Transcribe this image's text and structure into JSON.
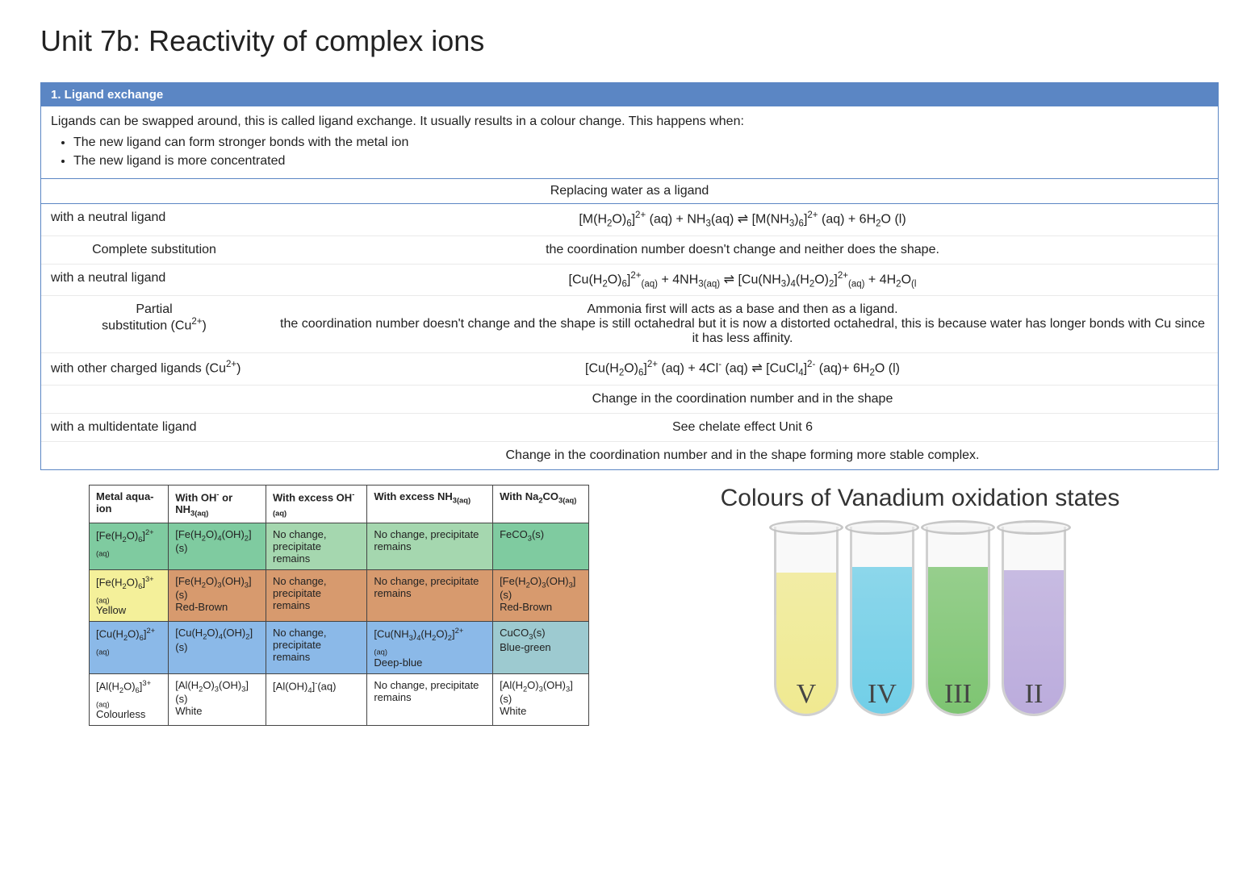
{
  "title": "Unit 7b: Reactivity of complex ions",
  "panel": {
    "header": "1. Ligand exchange",
    "intro_text": "Ligands can be swapped around, this is called ligand exchange.  It usually results in a colour change.   This happens when:",
    "bullets": [
      "The new ligand can form stronger bonds with the metal ion",
      "The new ligand is more concentrated"
    ],
    "subheader": "Replacing water as a ligand",
    "rows": [
      {
        "left": "with a neutral ligand",
        "right_html": "[M(H<sub>2</sub>O)<sub>6</sub>]<sup>2+</sup> (aq) + NH<sub>3</sub>(aq) &#8652; [M(NH<sub>3</sub>)<sub>6</sub>]<sup>2+</sup> (aq) + 6H<sub>2</sub>O (l)"
      },
      {
        "left_indent": "Complete substitution",
        "right": "the coordination number doesn't change and neither does the shape."
      },
      {
        "left": "with a neutral ligand",
        "right_html": "[Cu(H<sub>2</sub>O)<sub>6</sub>]<sup>2+</sup><sub>(aq)</sub> +  4NH<sub>3(aq)</sub> &#8652;  [Cu(NH<sub>3</sub>)<sub>4</sub>(H<sub>2</sub>O)<sub>2</sub>]<sup>2+</sup><sub>(aq)</sub>  + 4H<sub>2</sub>O<sub>(l</sub>"
      },
      {
        "left_indent_html": "Partial<br>substitution (Cu<sup>2+</sup>)",
        "right_html": "Ammonia first will acts as a base and then as a ligand.<br>the coordination number doesn't change and the shape is still octahedral but it is now a distorted octahedral, this is because water has longer bonds with Cu since it has less affinity."
      },
      {
        "left_html": "with other charged ligands (Cu<sup>2+</sup>)",
        "right_html": "[Cu(H<sub>2</sub>O)<sub>6</sub>]<sup>2+</sup> (aq) + 4Cl<sup>-</sup> (aq) &#8652; [CuCl<sub>4</sub>]<sup>2-</sup> (aq)+ 6H<sub>2</sub>O (l)"
      },
      {
        "left": "",
        "right": "Change in the coordination number and in the shape"
      },
      {
        "left": "with a multidentate ligand",
        "right": "See chelate effect Unit 6"
      },
      {
        "left": "",
        "right": "Change in the coordination number and in the shape forming more stable complex."
      }
    ]
  },
  "table": {
    "headers_html": [
      "Metal aqua-ion",
      "With OH<sup>-</sup> or NH<sub>3(aq)</sub>",
      "With excess OH<sup>-</sup><sub>(aq)</sub>",
      "With excess NH<sub>3(aq)</sub>",
      "With Na<sub>2</sub>CO<sub>3(aq)</sub>"
    ],
    "rows": [
      {
        "cells_html": [
          "[Fe(H<sub>2</sub>O)<sub>6</sub>]<sup>2+</sup> <sub>(aq)</sub>",
          "[Fe(H<sub>2</sub>O)<sub>4</sub>(OH)<sub>2</sub>] (s)",
          "No change, precipitate remains",
          "No change, precipitate remains",
          "FeCO<sub>3</sub>(s)"
        ],
        "classes": [
          "bg-green",
          "bg-green",
          "bg-green2",
          "bg-green2",
          "bg-green"
        ]
      },
      {
        "cells_html": [
          "[Fe(H<sub>2</sub>O)<sub>6</sub>]<sup>3+</sup> <sub>(aq)</sub><br>Yellow",
          "[Fe(H<sub>2</sub>O)<sub>3</sub>(OH)<sub>3</sub>] (s)<br>Red-Brown",
          "No change, precipitate remains",
          "No change, precipitate remains",
          "[Fe(H<sub>2</sub>O)<sub>3</sub>(OH)<sub>3</sub>] (s)<br>Red-Brown"
        ],
        "classes": [
          "bg-yellow",
          "bg-orange",
          "bg-orange",
          "bg-orange",
          "bg-orange"
        ]
      },
      {
        "cells_html": [
          "[Cu(H<sub>2</sub>O)<sub>6</sub>]<sup>2+</sup> <sub>(aq)</sub>",
          "[Cu(H<sub>2</sub>O)<sub>4</sub>(OH)<sub>2</sub>] (s)",
          "No change, precipitate remains",
          "[Cu(NH<sub>3</sub>)<sub>4</sub>(H<sub>2</sub>O)<sub>2</sub>]<sup>2+</sup><br><sub>(aq)</sub><br>Deep-blue",
          "CuCO<sub>3</sub>(s)<br>Blue-green"
        ],
        "classes": [
          "bg-blue",
          "bg-blue",
          "bg-blue",
          "bg-blue",
          "bg-bluegr"
        ]
      },
      {
        "cells_html": [
          "[Al(H<sub>2</sub>O)<sub>6</sub>]<sup>3+</sup> <sub>(aq)</sub><br>Colourless",
          "[Al(H<sub>2</sub>O)<sub>3</sub>(OH)<sub>3</sub>] (s)<br>White",
          "[Al(OH)<sub>4</sub>]<sup>-</sup>(aq)",
          "No change, precipitate remains",
          "[Al(H<sub>2</sub>O)<sub>3</sub>(OH)<sub>3</sub>] (s)<br>White"
        ],
        "classes": [
          "bg-white",
          "bg-white",
          "bg-white",
          "bg-white",
          "bg-white"
        ]
      }
    ]
  },
  "vanadium": {
    "title": "Colours of Vanadium oxidation states",
    "tubes": [
      {
        "label": "V",
        "liquid_color": "#f2e96a",
        "liquid_height": 175
      },
      {
        "label": "IV",
        "liquid_color": "#3dc2e6",
        "liquid_height": 182
      },
      {
        "label": "III",
        "liquid_color": "#4fb43e",
        "liquid_height": 182
      },
      {
        "label": "II",
        "liquid_color": "#a791d6",
        "liquid_height": 178
      }
    ]
  }
}
